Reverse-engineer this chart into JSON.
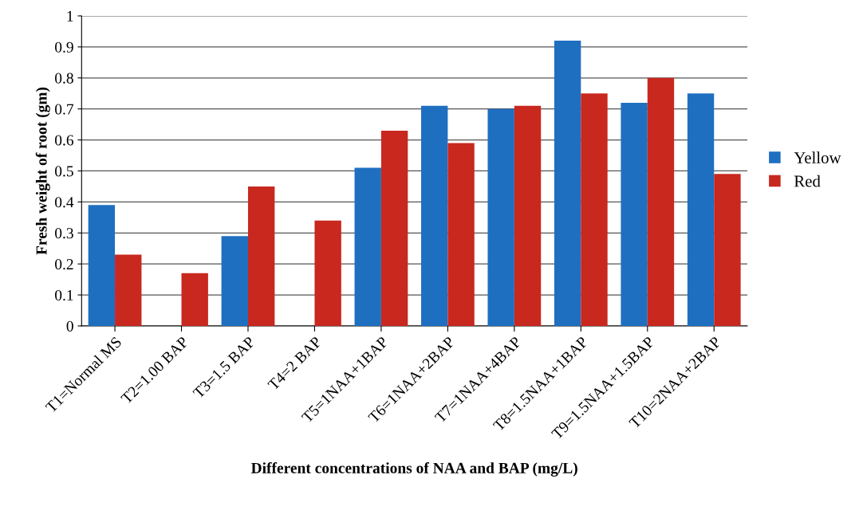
{
  "chart_data": {
    "type": "bar",
    "xlabel": "Different concentrations of NAA and BAP (mg/L)",
    "ylabel": "Fresh weight of root (gm)",
    "categories": [
      "T1=Normal MS",
      "T2=1.00 BAP",
      "T3=1.5 BAP",
      "T4=2 BAP",
      "T5=1NAA+1BAP",
      "T6=1NAA+2BAP",
      "T7=1NAA+4BAP",
      "T8=1.5NAA+1BAP",
      "T9=1.5NAA+1.5BAP",
      "T10=2NAA+2BAP"
    ],
    "series": [
      {
        "name": "Yellow",
        "color": "#1f6fc1",
        "values": [
          0.39,
          0,
          0.29,
          0,
          0.51,
          0.71,
          0.7,
          0.92,
          0.72,
          0.75
        ]
      },
      {
        "name": "Red",
        "color": "#c8281e",
        "values": [
          0.23,
          0.17,
          0.45,
          0.34,
          0.63,
          0.59,
          0.71,
          0.75,
          0.8,
          0.49
        ]
      }
    ],
    "ylim": [
      0,
      1
    ],
    "yticks": [
      0,
      0.1,
      0.2,
      0.3,
      0.4,
      0.5,
      0.6,
      0.7,
      0.8,
      0.9,
      1
    ],
    "grid": "y",
    "legend": "right"
  }
}
